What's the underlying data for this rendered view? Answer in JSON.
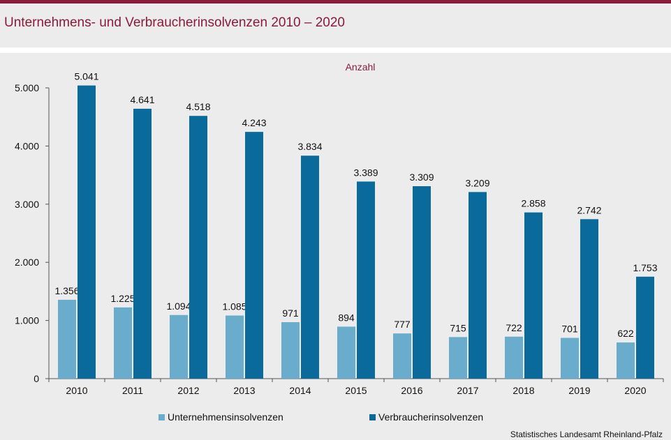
{
  "title": "Unternehmens- und Verbraucherinsolvenzen 2010 – 2020",
  "source": "Statistisches Landesamt Rheinland-Pfalz",
  "colors": {
    "brand": "#8b1a3b",
    "series_light": "#6aaccb",
    "series_dark": "#0a6a9b"
  },
  "chart_data": {
    "type": "bar",
    "unit_label": "Anzahl",
    "categories": [
      "2010",
      "2011",
      "2012",
      "2013",
      "2014",
      "2015",
      "2016",
      "2017",
      "2018",
      "2019",
      "2020"
    ],
    "series": [
      {
        "name": "Unternehmensinsolvenzen",
        "color": "#6aaccb",
        "values": [
          1356,
          1225,
          1094,
          1085,
          971,
          894,
          777,
          715,
          722,
          701,
          622
        ],
        "labels": [
          "1.356",
          "1.225",
          "1.094",
          "1.085",
          "971",
          "894",
          "777",
          "715",
          "722",
          "701",
          "622"
        ]
      },
      {
        "name": "Verbraucherinsolvenzen",
        "color": "#0a6a9b",
        "values": [
          5041,
          4641,
          4518,
          4243,
          3834,
          3389,
          3309,
          3209,
          2858,
          2742,
          1753
        ],
        "labels": [
          "5.041",
          "4.641",
          "4.518",
          "4.243",
          "3.834",
          "3.389",
          "3.309",
          "3.209",
          "2.858",
          "2.742",
          "1.753"
        ]
      }
    ],
    "yticks": [
      0,
      1000,
      2000,
      3000,
      4000,
      5000
    ],
    "ytick_labels": [
      "0",
      "1.000",
      "2.000",
      "3.000",
      "4.000",
      "5.000"
    ],
    "ylim": [
      0,
      5000
    ],
    "grid": false,
    "legend_position": "bottom"
  }
}
